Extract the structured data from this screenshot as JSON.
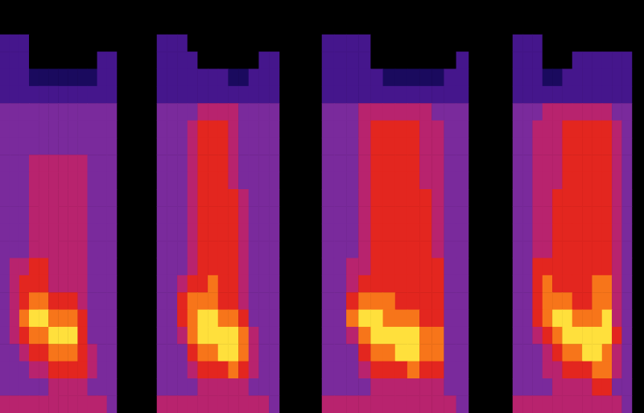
{
  "chart_data": [
    {
      "type": "heatmap",
      "tick_labels": false,
      "color_range": [
        0,
        7
      ],
      "cells": [
        [
          2,
          2,
          2,
          0,
          0,
          0,
          0,
          0,
          0,
          0,
          0,
          0
        ],
        [
          2,
          2,
          2,
          0,
          0,
          0,
          0,
          0,
          0,
          0,
          2,
          2
        ],
        [
          2,
          2,
          2,
          1,
          1,
          1,
          1,
          1,
          1,
          1,
          2,
          2
        ],
        [
          2,
          2,
          2,
          2,
          2,
          2,
          2,
          2,
          2,
          2,
          2,
          2
        ],
        [
          3,
          3,
          3,
          3,
          3,
          3,
          3,
          3,
          3,
          3,
          3,
          3
        ],
        [
          3,
          3,
          3,
          3,
          3,
          3,
          3,
          3,
          3,
          3,
          3,
          3
        ],
        [
          3,
          3,
          3,
          3,
          3,
          3,
          3,
          3,
          3,
          3,
          3,
          3
        ],
        [
          3,
          3,
          3,
          4,
          4,
          4,
          4,
          4,
          4,
          3,
          3,
          3
        ],
        [
          3,
          3,
          3,
          4,
          4,
          4,
          4,
          4,
          4,
          3,
          3,
          3
        ],
        [
          3,
          3,
          3,
          4,
          4,
          4,
          4,
          4,
          4,
          3,
          3,
          3
        ],
        [
          3,
          3,
          3,
          4,
          4,
          4,
          4,
          4,
          4,
          3,
          3,
          3
        ],
        [
          3,
          3,
          3,
          4,
          4,
          4,
          4,
          4,
          4,
          3,
          3,
          3
        ],
        [
          3,
          3,
          3,
          4,
          4,
          4,
          4,
          4,
          4,
          3,
          3,
          3
        ],
        [
          3,
          4,
          4,
          5,
          5,
          4,
          4,
          4,
          4,
          3,
          3,
          3
        ],
        [
          3,
          4,
          5,
          5,
          5,
          4,
          4,
          4,
          4,
          3,
          3,
          3
        ],
        [
          3,
          4,
          5,
          6,
          6,
          5,
          5,
          5,
          4,
          3,
          3,
          3
        ],
        [
          3,
          4,
          6,
          7,
          7,
          6,
          6,
          6,
          5,
          3,
          3,
          3
        ],
        [
          3,
          4,
          5,
          6,
          6,
          7,
          7,
          7,
          5,
          3,
          3,
          3
        ],
        [
          3,
          3,
          4,
          5,
          5,
          6,
          6,
          6,
          5,
          4,
          3,
          3
        ],
        [
          3,
          3,
          3,
          4,
          4,
          5,
          5,
          5,
          5,
          4,
          3,
          3
        ],
        [
          3,
          3,
          3,
          3,
          3,
          4,
          4,
          4,
          4,
          3,
          3,
          3
        ],
        [
          4,
          4,
          4,
          4,
          4,
          4,
          4,
          4,
          4,
          4,
          4,
          3
        ]
      ]
    },
    {
      "type": "heatmap",
      "tick_labels": false,
      "color_range": [
        0,
        7
      ],
      "cells": [
        [
          2,
          2,
          2,
          0,
          0,
          0,
          0,
          0,
          0,
          0,
          0,
          0
        ],
        [
          2,
          2,
          2,
          2,
          0,
          0,
          0,
          0,
          0,
          0,
          2,
          2
        ],
        [
          2,
          2,
          2,
          2,
          2,
          2,
          2,
          1,
          1,
          2,
          2,
          2
        ],
        [
          2,
          2,
          2,
          2,
          2,
          2,
          2,
          2,
          2,
          2,
          2,
          2
        ],
        [
          3,
          3,
          3,
          3,
          4,
          4,
          4,
          4,
          3,
          3,
          3,
          3
        ],
        [
          3,
          3,
          3,
          4,
          5,
          5,
          5,
          4,
          3,
          3,
          3,
          3
        ],
        [
          3,
          3,
          3,
          4,
          5,
          5,
          5,
          4,
          3,
          3,
          3,
          3
        ],
        [
          3,
          3,
          3,
          4,
          5,
          5,
          5,
          4,
          3,
          3,
          3,
          3
        ],
        [
          3,
          3,
          3,
          4,
          5,
          5,
          5,
          4,
          3,
          3,
          3,
          3
        ],
        [
          3,
          3,
          3,
          4,
          5,
          5,
          5,
          5,
          4,
          3,
          3,
          3
        ],
        [
          3,
          3,
          3,
          4,
          5,
          5,
          5,
          5,
          4,
          3,
          3,
          3
        ],
        [
          3,
          3,
          3,
          4,
          5,
          5,
          5,
          5,
          4,
          3,
          3,
          3
        ],
        [
          3,
          3,
          3,
          4,
          5,
          5,
          5,
          5,
          4,
          3,
          3,
          3
        ],
        [
          3,
          3,
          3,
          4,
          5,
          5,
          5,
          5,
          4,
          3,
          3,
          3
        ],
        [
          3,
          3,
          4,
          5,
          5,
          6,
          5,
          5,
          4,
          3,
          3,
          3
        ],
        [
          3,
          3,
          5,
          6,
          6,
          6,
          5,
          5,
          4,
          3,
          3,
          3
        ],
        [
          3,
          3,
          5,
          6,
          7,
          7,
          6,
          6,
          5,
          3,
          3,
          3
        ],
        [
          3,
          3,
          4,
          6,
          7,
          7,
          7,
          7,
          6,
          4,
          3,
          3
        ],
        [
          3,
          3,
          3,
          5,
          6,
          6,
          7,
          7,
          6,
          4,
          3,
          3
        ],
        [
          3,
          3,
          3,
          4,
          5,
          5,
          5,
          6,
          5,
          4,
          3,
          3
        ],
        [
          3,
          3,
          3,
          3,
          4,
          4,
          4,
          4,
          4,
          3,
          3,
          3
        ],
        [
          4,
          4,
          4,
          4,
          4,
          4,
          4,
          4,
          4,
          4,
          4,
          3
        ]
      ]
    },
    {
      "type": "heatmap",
      "tick_labels": false,
      "color_range": [
        0,
        7
      ],
      "cells": [
        [
          2,
          2,
          2,
          2,
          0,
          0,
          0,
          0,
          0,
          0,
          0,
          0
        ],
        [
          2,
          2,
          2,
          2,
          0,
          0,
          0,
          0,
          0,
          0,
          0,
          2
        ],
        [
          2,
          2,
          2,
          2,
          2,
          1,
          1,
          1,
          1,
          1,
          2,
          2
        ],
        [
          2,
          2,
          2,
          2,
          2,
          2,
          2,
          2,
          2,
          2,
          2,
          2
        ],
        [
          3,
          3,
          3,
          4,
          4,
          4,
          4,
          4,
          4,
          3,
          3,
          3
        ],
        [
          3,
          3,
          3,
          4,
          5,
          5,
          5,
          5,
          4,
          4,
          3,
          3
        ],
        [
          3,
          3,
          3,
          4,
          5,
          5,
          5,
          5,
          4,
          4,
          3,
          3
        ],
        [
          3,
          3,
          3,
          4,
          5,
          5,
          5,
          5,
          4,
          4,
          3,
          3
        ],
        [
          3,
          3,
          3,
          4,
          5,
          5,
          5,
          5,
          4,
          4,
          3,
          3
        ],
        [
          3,
          3,
          3,
          4,
          5,
          5,
          5,
          5,
          5,
          4,
          3,
          3
        ],
        [
          3,
          3,
          3,
          4,
          5,
          5,
          5,
          5,
          5,
          4,
          3,
          3
        ],
        [
          3,
          3,
          3,
          4,
          5,
          5,
          5,
          5,
          5,
          4,
          3,
          3
        ],
        [
          3,
          3,
          3,
          4,
          5,
          5,
          5,
          5,
          5,
          4,
          3,
          3
        ],
        [
          3,
          3,
          4,
          4,
          5,
          5,
          5,
          5,
          5,
          5,
          3,
          3
        ],
        [
          3,
          3,
          4,
          5,
          5,
          5,
          5,
          5,
          5,
          5,
          3,
          3
        ],
        [
          3,
          3,
          5,
          6,
          6,
          6,
          5,
          5,
          5,
          5,
          3,
          3
        ],
        [
          3,
          3,
          6,
          7,
          7,
          6,
          6,
          6,
          5,
          5,
          3,
          3
        ],
        [
          3,
          3,
          4,
          6,
          7,
          7,
          7,
          7,
          6,
          6,
          3,
          3
        ],
        [
          3,
          3,
          3,
          5,
          6,
          6,
          7,
          7,
          6,
          6,
          3,
          3
        ],
        [
          3,
          3,
          3,
          4,
          5,
          5,
          5,
          6,
          5,
          5,
          3,
          3
        ],
        [
          3,
          3,
          3,
          3,
          4,
          4,
          4,
          4,
          4,
          4,
          3,
          3
        ],
        [
          4,
          4,
          4,
          4,
          4,
          4,
          4,
          4,
          4,
          4,
          4,
          3
        ]
      ]
    },
    {
      "type": "heatmap",
      "tick_labels": false,
      "color_range": [
        0,
        7
      ],
      "cells": [
        [
          2,
          2,
          2,
          0,
          0,
          0,
          0,
          0,
          0,
          0,
          0,
          0
        ],
        [
          2,
          2,
          2,
          0,
          0,
          0,
          2,
          2,
          2,
          2,
          2,
          2
        ],
        [
          2,
          2,
          2,
          1,
          1,
          2,
          2,
          2,
          2,
          2,
          2,
          2
        ],
        [
          2,
          2,
          2,
          2,
          2,
          2,
          2,
          2,
          2,
          2,
          2,
          2
        ],
        [
          3,
          3,
          3,
          4,
          4,
          4,
          4,
          4,
          4,
          4,
          3,
          3
        ],
        [
          3,
          3,
          4,
          4,
          4,
          5,
          5,
          5,
          5,
          5,
          4,
          3
        ],
        [
          3,
          3,
          4,
          4,
          4,
          5,
          5,
          5,
          5,
          5,
          4,
          3
        ],
        [
          3,
          3,
          4,
          4,
          4,
          5,
          5,
          5,
          5,
          5,
          4,
          3
        ],
        [
          3,
          3,
          4,
          4,
          4,
          5,
          5,
          5,
          5,
          5,
          4,
          3
        ],
        [
          3,
          3,
          4,
          4,
          5,
          5,
          5,
          5,
          5,
          5,
          4,
          3
        ],
        [
          3,
          3,
          4,
          4,
          5,
          5,
          5,
          5,
          5,
          5,
          4,
          3
        ],
        [
          3,
          3,
          4,
          4,
          5,
          5,
          5,
          5,
          5,
          5,
          4,
          3
        ],
        [
          3,
          3,
          4,
          4,
          5,
          5,
          5,
          5,
          5,
          5,
          4,
          3
        ],
        [
          3,
          3,
          5,
          5,
          5,
          5,
          5,
          5,
          5,
          5,
          4,
          3
        ],
        [
          3,
          3,
          5,
          6,
          5,
          5,
          5,
          5,
          6,
          6,
          4,
          3
        ],
        [
          3,
          3,
          5,
          6,
          6,
          6,
          5,
          5,
          6,
          6,
          4,
          3
        ],
        [
          3,
          3,
          5,
          6,
          7,
          7,
          6,
          6,
          6,
          7,
          4,
          3
        ],
        [
          3,
          3,
          4,
          5,
          6,
          7,
          7,
          7,
          7,
          7,
          5,
          3
        ],
        [
          3,
          3,
          3,
          4,
          5,
          6,
          6,
          7,
          7,
          6,
          4,
          3
        ],
        [
          3,
          3,
          3,
          4,
          4,
          5,
          5,
          5,
          6,
          6,
          4,
          3
        ],
        [
          3,
          3,
          3,
          3,
          4,
          4,
          4,
          4,
          5,
          5,
          3,
          3
        ],
        [
          4,
          4,
          4,
          4,
          4,
          4,
          4,
          4,
          4,
          4,
          4,
          3
        ]
      ]
    }
  ]
}
